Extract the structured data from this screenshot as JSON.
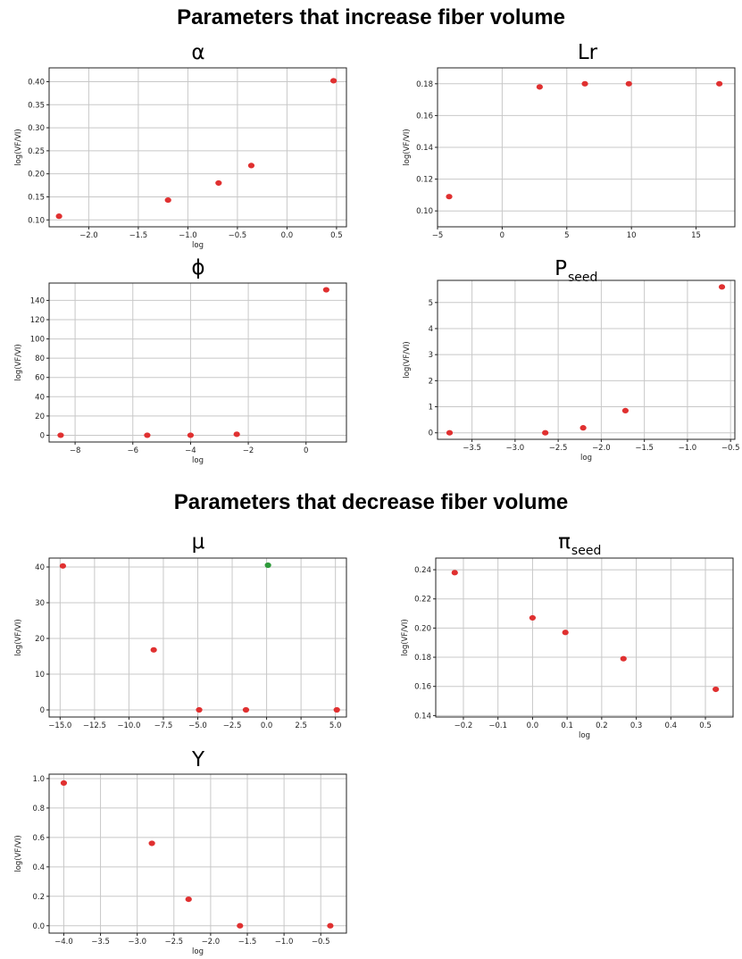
{
  "sections": {
    "increase_title": "Parameters that increase fiber volume",
    "decrease_title": "Parameters that decrease fiber volume"
  },
  "colors": {
    "point": "#e03030",
    "point_alt": "#2e9a3a",
    "grid": "#c8c8c8"
  },
  "chart_data": [
    {
      "type": "scatter",
      "title": "α",
      "title_sub": "",
      "xlabel": "log",
      "ylabel": "log(VF/VI)",
      "xlim": [
        -2.4,
        0.6
      ],
      "ylim": [
        0.085,
        0.43
      ],
      "xticks": [
        -2.0,
        -1.5,
        -1.0,
        -0.5,
        0.0,
        0.5
      ],
      "xtick_labels": [
        "−2.0",
        "−1.5",
        "−1.0",
        "−0.5",
        "0.0",
        "0.5"
      ],
      "yticks": [
        0.1,
        0.15,
        0.2,
        0.25,
        0.3,
        0.35,
        0.4
      ],
      "ytick_labels": [
        "0.10",
        "0.15",
        "0.20",
        "0.25",
        "0.30",
        "0.35",
        "0.40"
      ],
      "grid": true,
      "points": [
        {
          "x": -2.3,
          "y": 0.108,
          "color": "#e03030"
        },
        {
          "x": -1.2,
          "y": 0.143,
          "color": "#e03030"
        },
        {
          "x": -0.69,
          "y": 0.18,
          "color": "#e03030"
        },
        {
          "x": -0.36,
          "y": 0.218,
          "color": "#e03030"
        },
        {
          "x": 0.47,
          "y": 0.402,
          "color": "#e03030"
        }
      ]
    },
    {
      "type": "scatter",
      "title": "Lr",
      "title_sub": "",
      "xlabel": "",
      "ylabel": "log(VF/VI)",
      "xlim": [
        -5,
        18
      ],
      "ylim": [
        0.09,
        0.19
      ],
      "xticks": [
        -5,
        0,
        5,
        10,
        15
      ],
      "xtick_labels": [
        "−5",
        "0",
        "5",
        "10",
        "15"
      ],
      "yticks": [
        0.1,
        0.12,
        0.14,
        0.16,
        0.18
      ],
      "ytick_labels": [
        "0.10",
        "0.12",
        "0.14",
        "0.16",
        "0.18"
      ],
      "grid": true,
      "points": [
        {
          "x": -4.1,
          "y": 0.109,
          "color": "#e03030"
        },
        {
          "x": 2.9,
          "y": 0.178,
          "color": "#e03030"
        },
        {
          "x": 6.4,
          "y": 0.18,
          "color": "#e03030"
        },
        {
          "x": 9.8,
          "y": 0.18,
          "color": "#e03030"
        },
        {
          "x": 16.8,
          "y": 0.18,
          "color": "#e03030"
        }
      ]
    },
    {
      "type": "scatter",
      "title": "ϕ",
      "title_sub": "",
      "xlabel": "log",
      "ylabel": "log(VF/VI)",
      "xlim": [
        -8.9,
        1.4
      ],
      "ylim": [
        -7,
        158
      ],
      "xticks": [
        -8,
        -6,
        -4,
        -2,
        0
      ],
      "xtick_labels": [
        "−8",
        "−6",
        "−4",
        "−2",
        "0"
      ],
      "yticks": [
        0,
        20,
        40,
        60,
        80,
        100,
        120,
        140
      ],
      "ytick_labels": [
        "0",
        "20",
        "40",
        "60",
        "80",
        "100",
        "120",
        "140"
      ],
      "grid": true,
      "points": [
        {
          "x": -8.5,
          "y": 0,
          "color": "#e03030"
        },
        {
          "x": -5.5,
          "y": 0,
          "color": "#e03030"
        },
        {
          "x": -4.0,
          "y": 0,
          "color": "#e03030"
        },
        {
          "x": -2.4,
          "y": 1,
          "color": "#e03030"
        },
        {
          "x": 0.7,
          "y": 151,
          "color": "#e03030"
        }
      ]
    },
    {
      "type": "scatter",
      "title": "P",
      "title_sub": "seed",
      "xlabel": "log",
      "ylabel": "log(VF/VI)",
      "xlim": [
        -3.9,
        -0.45
      ],
      "ylim": [
        -0.25,
        5.85
      ],
      "xticks": [
        -3.5,
        -3.0,
        -2.5,
        -2.0,
        -1.5,
        -1.0,
        -0.5
      ],
      "xtick_labels": [
        "−3.5",
        "−3.0",
        "−2.5",
        "−2.0",
        "−1.5",
        "−1.0",
        "−0.5"
      ],
      "yticks": [
        0,
        1,
        2,
        3,
        4,
        5
      ],
      "ytick_labels": [
        "0",
        "1",
        "2",
        "3",
        "4",
        "5"
      ],
      "grid": true,
      "points": [
        {
          "x": -3.76,
          "y": 0.0,
          "color": "#e03030"
        },
        {
          "x": -2.65,
          "y": 0.0,
          "color": "#e03030"
        },
        {
          "x": -2.21,
          "y": 0.19,
          "color": "#e03030"
        },
        {
          "x": -1.72,
          "y": 0.85,
          "color": "#e03030"
        },
        {
          "x": -0.6,
          "y": 5.6,
          "color": "#e03030"
        }
      ]
    },
    {
      "type": "scatter",
      "title": "μ",
      "title_sub": "",
      "xlabel": "",
      "ylabel": "log(VF/VI)",
      "xlim": [
        -15.8,
        5.8
      ],
      "ylim": [
        -2,
        42.5
      ],
      "xticks": [
        -15.0,
        -12.5,
        -10.0,
        -7.5,
        -5.0,
        -2.5,
        0.0,
        2.5,
        5.0
      ],
      "xtick_labels": [
        "−15.0",
        "−12.5",
        "−10.0",
        "−7.5",
        "−5.0",
        "−2.5",
        "0.0",
        "2.5",
        "5.0"
      ],
      "yticks": [
        0,
        10,
        20,
        30,
        40
      ],
      "ytick_labels": [
        "0",
        "10",
        "20",
        "30",
        "40"
      ],
      "grid": true,
      "points": [
        {
          "x": -14.8,
          "y": 40.3,
          "color": "#e03030"
        },
        {
          "x": -8.2,
          "y": 16.8,
          "color": "#e03030"
        },
        {
          "x": -4.9,
          "y": 0,
          "color": "#e03030"
        },
        {
          "x": -1.5,
          "y": 0,
          "color": "#e03030"
        },
        {
          "x": 0.1,
          "y": 40.5,
          "color": "#2e9a3a"
        },
        {
          "x": 5.1,
          "y": 0,
          "color": "#e03030"
        }
      ]
    },
    {
      "type": "scatter",
      "title": "π",
      "title_sub": "seed",
      "xlabel": "log",
      "ylabel": "log(VF/VI)",
      "xlim": [
        -0.28,
        0.58
      ],
      "ylim": [
        0.139,
        0.248
      ],
      "xticks": [
        -0.2,
        -0.1,
        0.0,
        0.1,
        0.2,
        0.3,
        0.4,
        0.5
      ],
      "xtick_labels": [
        "−0.2",
        "−0.1",
        "0.0",
        "0.1",
        "0.2",
        "0.3",
        "0.4",
        "0.5"
      ],
      "yticks": [
        0.14,
        0.16,
        0.18,
        0.2,
        0.22,
        0.24
      ],
      "ytick_labels": [
        "0.14",
        "0.16",
        "0.18",
        "0.20",
        "0.22",
        "0.24"
      ],
      "grid": true,
      "points": [
        {
          "x": -0.225,
          "y": 0.238,
          "color": "#e03030"
        },
        {
          "x": 0.0,
          "y": 0.207,
          "color": "#e03030"
        },
        {
          "x": 0.095,
          "y": 0.197,
          "color": "#e03030"
        },
        {
          "x": 0.263,
          "y": 0.179,
          "color": "#e03030"
        },
        {
          "x": 0.53,
          "y": 0.158,
          "color": "#e03030"
        }
      ]
    },
    {
      "type": "scatter",
      "title": "Y",
      "title_sub": "",
      "xlabel": "log",
      "ylabel": "log(VF/VI)",
      "xlim": [
        -4.2,
        -0.15
      ],
      "ylim": [
        -0.05,
        1.03
      ],
      "xticks": [
        -4.0,
        -3.5,
        -3.0,
        -2.5,
        -2.0,
        -1.5,
        -1.0,
        -0.5
      ],
      "xtick_labels": [
        "−4.0",
        "−3.5",
        "−3.0",
        "−2.5",
        "−2.0",
        "−1.5",
        "−1.0",
        "−0.5"
      ],
      "yticks": [
        0.0,
        0.2,
        0.4,
        0.6,
        0.8,
        1.0
      ],
      "ytick_labels": [
        "0.0",
        "0.2",
        "0.4",
        "0.6",
        "0.8",
        "1.0"
      ],
      "grid": true,
      "points": [
        {
          "x": -4.0,
          "y": 0.97,
          "color": "#e03030"
        },
        {
          "x": -2.8,
          "y": 0.56,
          "color": "#e03030"
        },
        {
          "x": -2.3,
          "y": 0.18,
          "color": "#e03030"
        },
        {
          "x": -1.6,
          "y": 0.0,
          "color": "#e03030"
        },
        {
          "x": -0.37,
          "y": 0.0,
          "color": "#e03030"
        }
      ]
    }
  ]
}
